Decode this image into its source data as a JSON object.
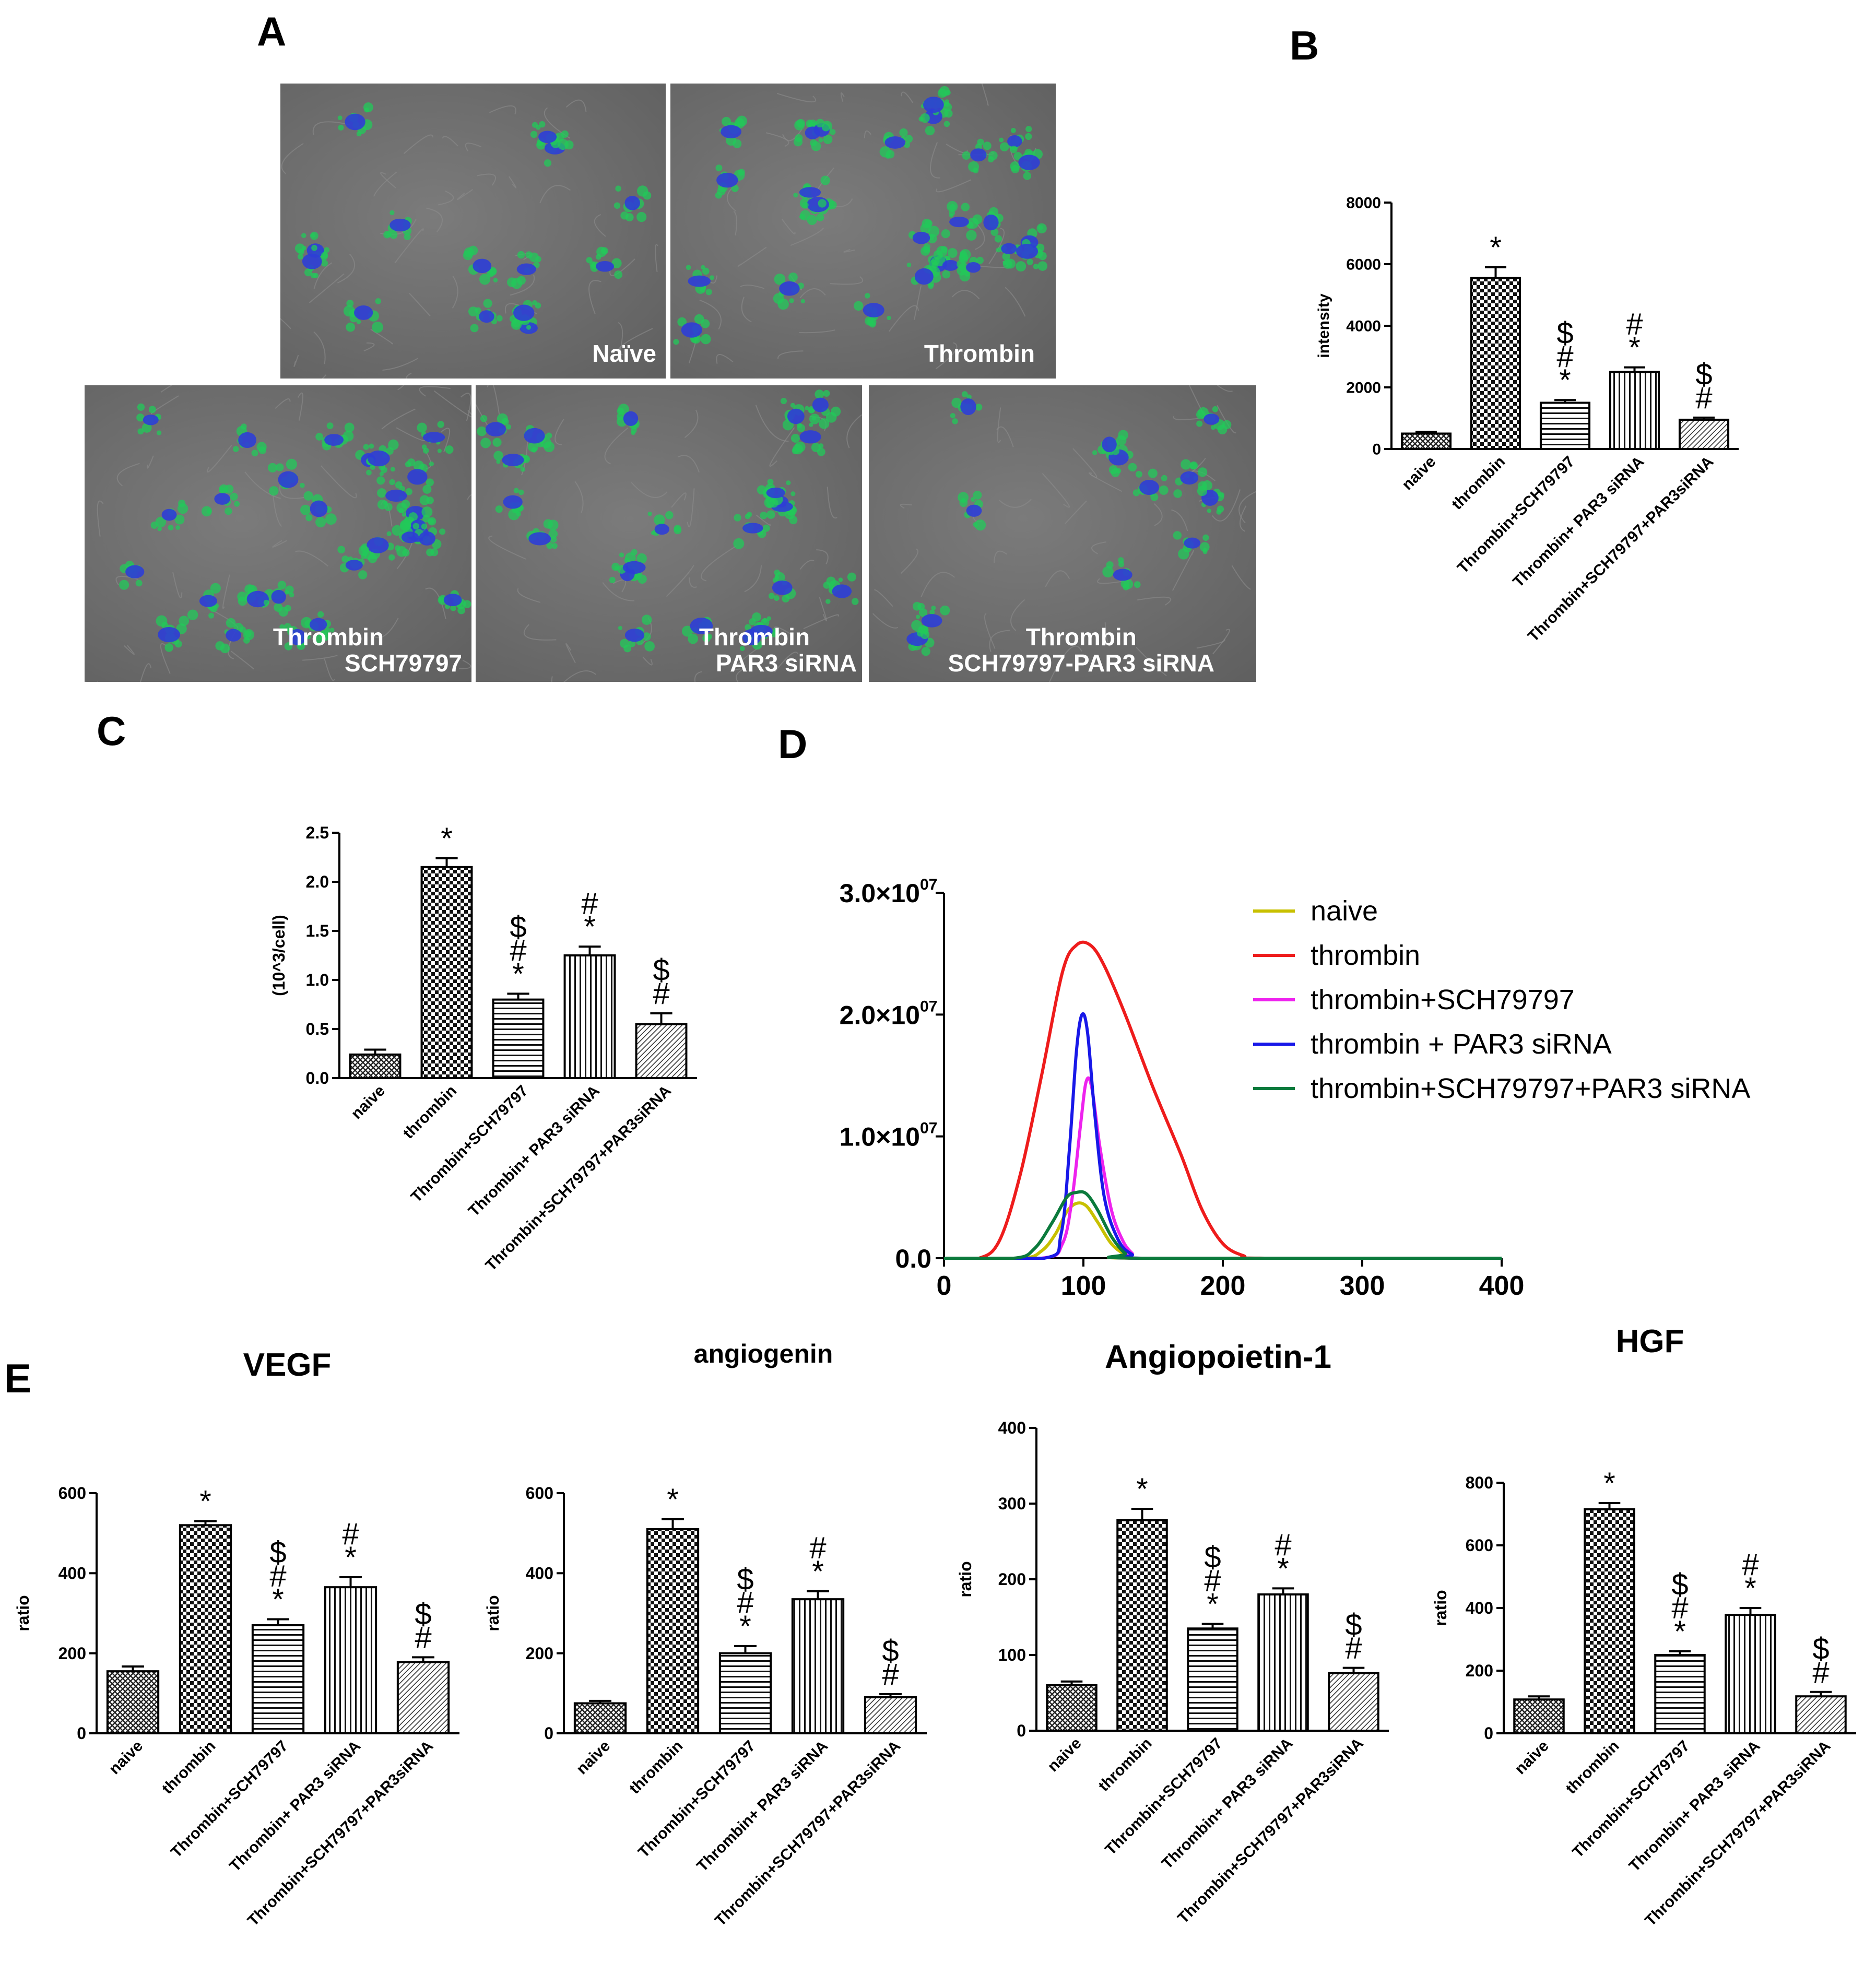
{
  "panel_letters": {
    "a": "A",
    "b": "B",
    "c": "C",
    "d": "D",
    "e": "E"
  },
  "micrographs": [
    {
      "label": "Naïve",
      "sub": ""
    },
    {
      "label": "Thrombin",
      "sub": ""
    },
    {
      "label": "Thrombin",
      "sub": "SCH79797"
    },
    {
      "label": "Thrombin",
      "sub": "PAR3 siRNA"
    },
    {
      "label": "Thrombin",
      "sub": "SCH79797-PAR3 siRNA"
    }
  ],
  "colors": {
    "nucleus": "#2e3ed6",
    "stain": "#22c95a",
    "naive": "#c8c000",
    "thrombin": "#ee1c1c",
    "sch": "#ee22ee",
    "par3": "#1818e8",
    "combo": "#0b7a3c"
  },
  "chart_data": [
    {
      "id": "B",
      "type": "bar",
      "title": "",
      "xlabel": "",
      "ylabel": "intensity",
      "ylim": [
        0,
        8000
      ],
      "yticks": [
        "0",
        "2000",
        "4000",
        "6000",
        "8000"
      ],
      "categories": [
        "naive",
        "thrombin",
        "Thrombin+SCH79797",
        "Thrombin+ PAR3 siRNA",
        "Thrombin+SCH79797+PAR3siRNA"
      ],
      "values": [
        500,
        5550,
        1500,
        2500,
        950
      ],
      "errors": [
        60,
        350,
        90,
        150,
        70
      ],
      "annotations": [
        [],
        [
          "*"
        ],
        [
          "$",
          "#",
          "*"
        ],
        [
          "#",
          "*"
        ],
        [
          "$",
          "#"
        ]
      ]
    },
    {
      "id": "C",
      "type": "bar",
      "title": "",
      "xlabel": "",
      "ylabel": "(10^3/cell)",
      "ylim": [
        0,
        2.5
      ],
      "yticks": [
        "0.0",
        "0.5",
        "1.0",
        "1.5",
        "2.0",
        "2.5"
      ],
      "categories": [
        "naive",
        "thrombin",
        "Thrombin+SCH79797",
        "Thrombin+ PAR3 siRNA",
        "Thrombin+SCH79797+PAR3siRNA"
      ],
      "values": [
        0.24,
        2.15,
        0.8,
        1.25,
        0.55
      ],
      "errors": [
        0.05,
        0.09,
        0.06,
        0.09,
        0.11
      ],
      "annotations": [
        [],
        [
          "*"
        ],
        [
          "$",
          "#",
          "*"
        ],
        [
          "#",
          "*"
        ],
        [
          "$",
          "#"
        ]
      ]
    },
    {
      "id": "D",
      "type": "line",
      "title": "",
      "xlabel": "",
      "ylabel": "",
      "xlim": [
        0,
        400
      ],
      "xticks": [
        "0",
        "100",
        "200",
        "300",
        "400"
      ],
      "ylim": [
        0,
        30000000
      ],
      "yticks": [
        "0.0",
        "1.0×10",
        "2.0×10",
        "3.0×10"
      ],
      "ytick_exponent": "07",
      "series": [
        {
          "name": "naive",
          "x": [
            55,
            70,
            80,
            88,
            95,
            102,
            110,
            120,
            130,
            140
          ],
          "y": [
            0,
            600000,
            2000000,
            3800000,
            4500000,
            4300000,
            3000000,
            1200000,
            300000,
            0
          ]
        },
        {
          "name": "thrombin",
          "x": [
            25,
            40,
            55,
            70,
            85,
            95,
            105,
            115,
            130,
            150,
            170,
            185,
            200,
            215,
            230
          ],
          "y": [
            0,
            1500000,
            7000000,
            15000000,
            23500000,
            25700000,
            25700000,
            24000000,
            20000000,
            14000000,
            8500000,
            4000000,
            1200000,
            200000,
            0
          ]
        },
        {
          "name": "thrombin+SCH79797",
          "x": [
            70,
            85,
            92,
            98,
            102,
            106,
            112,
            120,
            128,
            135,
            142
          ],
          "y": [
            0,
            1200000,
            5000000,
            11000000,
            14500000,
            14000000,
            9000000,
            4000000,
            1500000,
            400000,
            0
          ]
        },
        {
          "name": "thrombin + PAR3 siRNA",
          "x": [
            72,
            84,
            90,
            95,
            99,
            103,
            108,
            115,
            125,
            135,
            145
          ],
          "y": [
            0,
            2000000,
            9000000,
            17000000,
            20000000,
            18500000,
            12000000,
            5000000,
            1500000,
            300000,
            0
          ]
        },
        {
          "name": "thrombin+SCH79797+PAR3 siRNA",
          "x": [
            50,
            65,
            78,
            88,
            95,
            102,
            110,
            120,
            130,
            140
          ],
          "y": [
            0,
            800000,
            3000000,
            5000000,
            5400000,
            5300000,
            4000000,
            1800000,
            400000,
            0
          ]
        }
      ]
    },
    {
      "id": "E1",
      "type": "bar",
      "title": "VEGF",
      "xlabel": "",
      "ylabel": "ratio",
      "ylim": [
        0,
        600
      ],
      "yticks": [
        "0",
        "200",
        "400",
        "600"
      ],
      "categories": [
        "naive",
        "thrombin",
        "Thrombin+SCH79797",
        "Thrombin+ PAR3 siRNA",
        "Thrombin+SCH79797+PAR3siRNA"
      ],
      "values": [
        155,
        520,
        270,
        365,
        178
      ],
      "errors": [
        12,
        10,
        15,
        25,
        12
      ],
      "annotations": [
        [],
        [
          "*"
        ],
        [
          "$",
          "#",
          "*"
        ],
        [
          "#",
          "*"
        ],
        [
          "$",
          "#"
        ]
      ]
    },
    {
      "id": "E2",
      "type": "bar",
      "title": "angiogenin",
      "xlabel": "",
      "ylabel": "ratio",
      "ylim": [
        0,
        600
      ],
      "yticks": [
        "0",
        "200",
        "400",
        "600"
      ],
      "categories": [
        "naive",
        "thrombin",
        "Thrombin+SCH79797",
        "Thrombin+ PAR3 siRNA",
        "Thrombin+SCH79797+PAR3siRNA"
      ],
      "values": [
        75,
        510,
        200,
        335,
        90
      ],
      "errors": [
        6,
        25,
        18,
        20,
        8
      ],
      "annotations": [
        [],
        [
          "*"
        ],
        [
          "$",
          "#",
          "*"
        ],
        [
          "#",
          "*"
        ],
        [
          "$",
          "#"
        ]
      ]
    },
    {
      "id": "E3",
      "type": "bar",
      "title": "Angiopoietin-1",
      "xlabel": "",
      "ylabel": "ratio",
      "ylim": [
        0,
        400
      ],
      "yticks": [
        "0",
        "100",
        "200",
        "300",
        "400"
      ],
      "categories": [
        "naive",
        "thrombin",
        "Thrombin+SCH79797",
        "Thrombin+ PAR3 siRNA",
        "Thrombin+SCH79797+PAR3siRNA"
      ],
      "values": [
        60,
        278,
        135,
        180,
        76
      ],
      "errors": [
        5,
        15,
        6,
        8,
        7
      ],
      "annotations": [
        [],
        [
          "*"
        ],
        [
          "$",
          "#",
          "*"
        ],
        [
          "#",
          "*"
        ],
        [
          "$",
          "#"
        ]
      ]
    },
    {
      "id": "E4",
      "type": "bar",
      "title": "HGF",
      "xlabel": "",
      "ylabel": "ratio",
      "ylim": [
        0,
        800
      ],
      "yticks": [
        "0",
        "200",
        "400",
        "600",
        "800"
      ],
      "categories": [
        "naive",
        "thrombin",
        "Thrombin+SCH79797",
        "Thrombin+ PAR3 siRNA",
        "Thrombin+SCH79797+PAR3siRNA"
      ],
      "values": [
        108,
        715,
        250,
        378,
        118
      ],
      "errors": [
        10,
        20,
        12,
        22,
        14
      ],
      "annotations": [
        [],
        [
          "*"
        ],
        [
          "$",
          "#",
          "*"
        ],
        [
          "#",
          "*"
        ],
        [
          "$",
          "#"
        ]
      ]
    }
  ]
}
